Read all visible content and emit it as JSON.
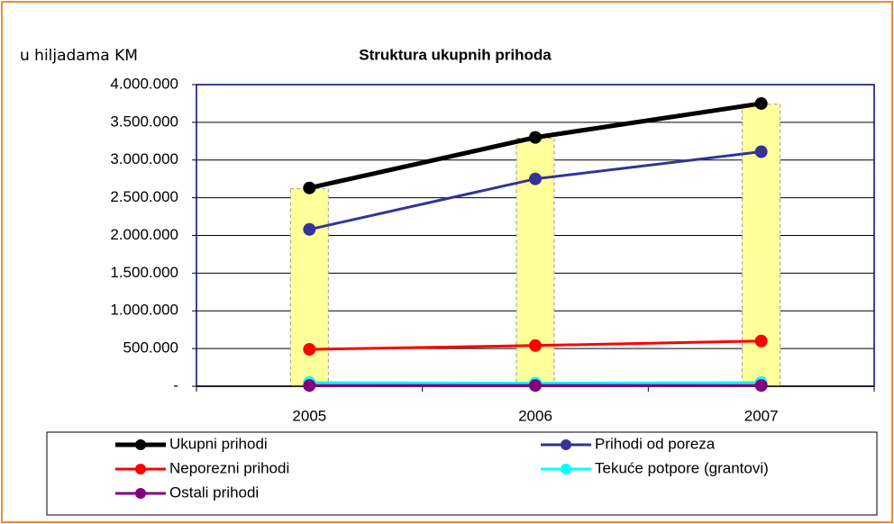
{
  "chart_data": {
    "type": "line",
    "title": "Struktura ukupnih prihoda",
    "y_label": "u hiljadama KM",
    "categories": [
      "2005",
      "2006",
      "2007"
    ],
    "bars": {
      "color": "#ffff99",
      "values": [
        2620000,
        3290000,
        3740000
      ]
    },
    "series": [
      {
        "name": "Ukupni prihodi",
        "color": "#000000",
        "values": [
          2630000,
          3300000,
          3750000
        ]
      },
      {
        "name": "Prihodi od poreza",
        "color": "#333399",
        "values": [
          2080000,
          2750000,
          3110000
        ]
      },
      {
        "name": "Neporezni prihodi",
        "color": "#ff0000",
        "values": [
          490000,
          540000,
          600000
        ]
      },
      {
        "name": "Tekuće potpore (grantovi)",
        "color": "#00ffff",
        "values": [
          50000,
          40000,
          50000
        ]
      },
      {
        "name": "Ostali prihodi",
        "color": "#800080",
        "values": [
          10000,
          10000,
          10000
        ]
      }
    ],
    "ylim": [
      0,
      4000000
    ],
    "yticks": [
      {
        "value": 0,
        "label": "-"
      },
      {
        "value": 500000,
        "label": "500.000"
      },
      {
        "value": 1000000,
        "label": "1.000.000"
      },
      {
        "value": 1500000,
        "label": "1.500.000"
      },
      {
        "value": 2000000,
        "label": "2.000.000"
      },
      {
        "value": 2500000,
        "label": "2.500.000"
      },
      {
        "value": 3000000,
        "label": "3.000.000"
      },
      {
        "value": 3500000,
        "label": "3.500.000"
      },
      {
        "value": 4000000,
        "label": "4.000.000"
      }
    ],
    "grid": true
  }
}
